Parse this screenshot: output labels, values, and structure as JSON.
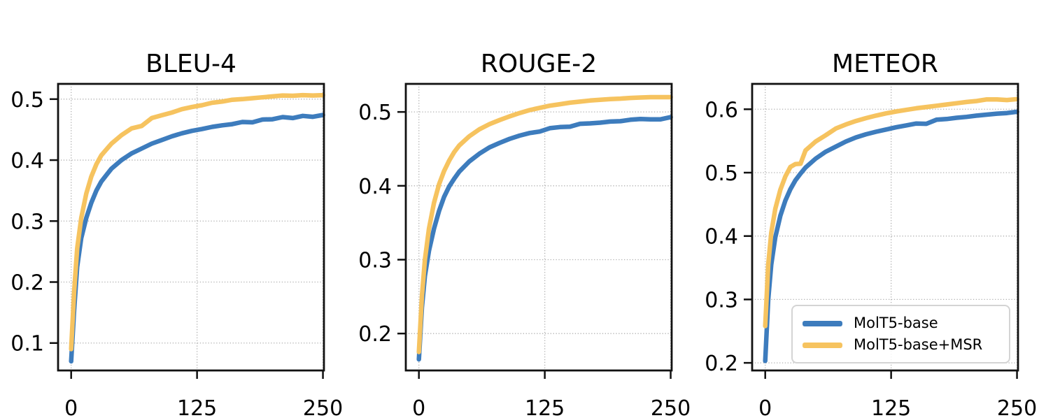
{
  "figure": {
    "background": "#ffffff"
  },
  "colors": {
    "series": {
      "blue": "#3d7cbd",
      "yellow": "#f6c35f"
    },
    "grid": "#b0b0b0",
    "spine": "#111111",
    "tick_text": "#000000",
    "legend_border": "#d4d4d4"
  },
  "legend": {
    "position": "lower right of METEOR panel",
    "items": [
      {
        "label": "MolT5-base",
        "color_key": "blue"
      },
      {
        "label": "MolT5-base+MSR",
        "color_key": "yellow"
      }
    ]
  },
  "chart_data": [
    {
      "type": "line",
      "title": "BLEU-4",
      "xlabel": "",
      "ylabel": "",
      "x": [
        0,
        3,
        6,
        10,
        15,
        20,
        25,
        30,
        35,
        40,
        50,
        60,
        70,
        80,
        90,
        100,
        110,
        120,
        130,
        140,
        150,
        160,
        170,
        180,
        190,
        200,
        210,
        220,
        230,
        240,
        250
      ],
      "series": [
        {
          "name": "MolT5-base",
          "color_key": "blue",
          "values": [
            0.07,
            0.155,
            0.225,
            0.272,
            0.305,
            0.33,
            0.35,
            0.365,
            0.3755,
            0.386,
            0.4,
            0.411,
            0.419,
            0.427,
            0.433,
            0.439,
            0.444,
            0.448,
            0.451,
            0.4545,
            0.457,
            0.459,
            0.4625,
            0.462,
            0.4665,
            0.467,
            0.4705,
            0.469,
            0.4725,
            0.471,
            0.474
          ]
        },
        {
          "name": "MolT5-base+MSR",
          "color_key": "yellow",
          "values": [
            0.09,
            0.185,
            0.255,
            0.305,
            0.345,
            0.373,
            0.393,
            0.408,
            0.4175,
            0.427,
            0.441,
            0.452,
            0.456,
            0.469,
            0.4735,
            0.478,
            0.4835,
            0.487,
            0.49,
            0.494,
            0.496,
            0.499,
            0.5,
            0.5015,
            0.503,
            0.5045,
            0.506,
            0.5055,
            0.5065,
            0.506,
            0.5065
          ]
        }
      ],
      "xticks": [
        0,
        125,
        250
      ],
      "yticks": [
        0.1,
        0.2,
        0.3,
        0.4,
        0.5
      ],
      "xlim": [
        -13,
        251
      ],
      "ylim": [
        0.055,
        0.525
      ],
      "grid": "dotted"
    },
    {
      "type": "line",
      "title": "ROUGE-2",
      "xlabel": "",
      "ylabel": "",
      "x": [
        0,
        3,
        6,
        10,
        15,
        20,
        25,
        30,
        35,
        40,
        50,
        60,
        70,
        80,
        90,
        100,
        110,
        120,
        130,
        140,
        150,
        160,
        170,
        180,
        190,
        200,
        210,
        220,
        230,
        240,
        250
      ],
      "series": [
        {
          "name": "MolT5-base",
          "color_key": "blue",
          "values": [
            0.165,
            0.235,
            0.278,
            0.312,
            0.342,
            0.366,
            0.385,
            0.399,
            0.4095,
            0.419,
            0.433,
            0.4435,
            0.452,
            0.458,
            0.4635,
            0.468,
            0.4715,
            0.4735,
            0.478,
            0.4795,
            0.48,
            0.484,
            0.4845,
            0.4855,
            0.487,
            0.4875,
            0.4895,
            0.4905,
            0.49,
            0.49,
            0.493
          ]
        },
        {
          "name": "MolT5-base+MSR",
          "color_key": "yellow",
          "values": [
            0.175,
            0.25,
            0.3,
            0.342,
            0.377,
            0.402,
            0.42,
            0.434,
            0.4455,
            0.4545,
            0.467,
            0.4765,
            0.4835,
            0.489,
            0.494,
            0.4985,
            0.5025,
            0.5055,
            0.5085,
            0.5105,
            0.5125,
            0.514,
            0.5155,
            0.5165,
            0.5175,
            0.518,
            0.519,
            0.5195,
            0.52,
            0.52,
            0.52
          ]
        }
      ],
      "xticks": [
        0,
        125,
        250
      ],
      "yticks": [
        0.2,
        0.3,
        0.4,
        0.5
      ],
      "xlim": [
        -13,
        251
      ],
      "ylim": [
        0.15,
        0.538
      ],
      "grid": "dotted"
    },
    {
      "type": "line",
      "title": "METEOR",
      "xlabel": "",
      "ylabel": "",
      "x": [
        0,
        3,
        6,
        10,
        15,
        20,
        25,
        30,
        35,
        40,
        50,
        60,
        70,
        80,
        90,
        100,
        110,
        120,
        130,
        140,
        150,
        160,
        170,
        180,
        190,
        200,
        210,
        220,
        230,
        240,
        250
      ],
      "series": [
        {
          "name": "MolT5-base",
          "color_key": "blue",
          "values": [
            0.203,
            0.3,
            0.355,
            0.398,
            0.432,
            0.456,
            0.474,
            0.488,
            0.4985,
            0.508,
            0.522,
            0.533,
            0.541,
            0.549,
            0.5555,
            0.5605,
            0.5645,
            0.568,
            0.5715,
            0.5745,
            0.5775,
            0.577,
            0.5835,
            0.5845,
            0.5865,
            0.588,
            0.59,
            0.5915,
            0.593,
            0.594,
            0.596
          ]
        },
        {
          "name": "MolT5-base+MSR",
          "color_key": "yellow",
          "values": [
            0.258,
            0.355,
            0.405,
            0.443,
            0.473,
            0.494,
            0.509,
            0.5135,
            0.514,
            0.535,
            0.549,
            0.559,
            0.5695,
            0.576,
            0.5815,
            0.586,
            0.59,
            0.5935,
            0.5965,
            0.599,
            0.6015,
            0.6035,
            0.6055,
            0.6075,
            0.6095,
            0.6115,
            0.613,
            0.6155,
            0.6155,
            0.6145,
            0.616
          ]
        }
      ],
      "xticks": [
        0,
        125,
        250
      ],
      "yticks": [
        0.2,
        0.3,
        0.4,
        0.5,
        0.6
      ],
      "xlim": [
        -13,
        251
      ],
      "ylim": [
        0.188,
        0.64
      ],
      "grid": "dotted",
      "legend": "lower right"
    }
  ]
}
